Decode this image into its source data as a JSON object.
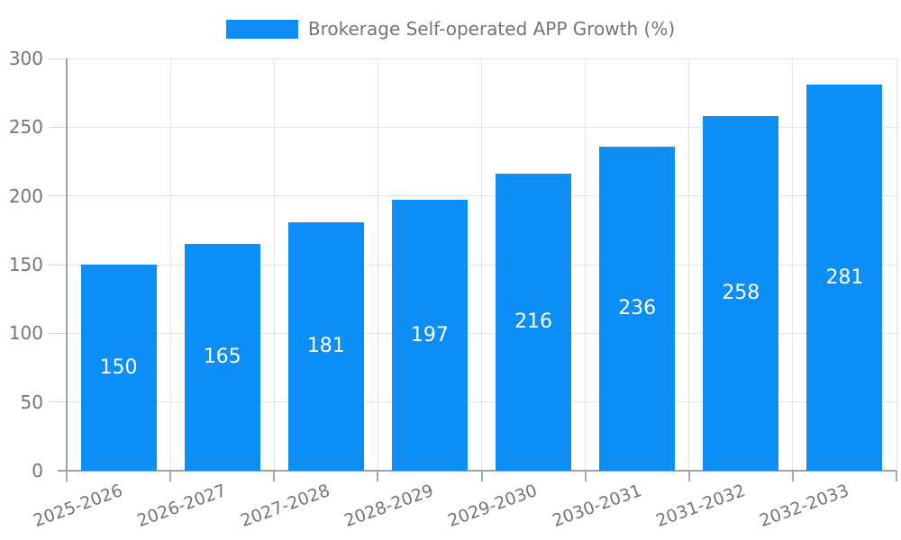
{
  "legend": {
    "label": "Brokerage Self-operated APP Growth (%)"
  },
  "colors": {
    "bar": "#0d8ef7",
    "axis_line": "#a3a3a3",
    "grid_line": "#e4e4e4",
    "tick_text": "#757575",
    "legend_text": "#747474",
    "value_label_text": "#ffffff",
    "background": "#ffffff"
  },
  "chart_data": {
    "type": "bar",
    "title": "Brokerage Self-operated APP Growth (%)",
    "series_name": "Brokerage Self-operated APP Growth (%)",
    "categories": [
      "2025-2026",
      "2026-2027",
      "2027-2028",
      "2028-2029",
      "2029-2030",
      "2030-2031",
      "2031-2032",
      "2032-2033"
    ],
    "values": [
      150,
      165,
      181,
      197,
      216,
      236,
      258,
      281
    ],
    "xlabel": "",
    "ylabel": "",
    "ylim": [
      0,
      300
    ],
    "yticks": [
      0,
      50,
      100,
      150,
      200,
      250,
      300
    ],
    "grid": true,
    "legend_position": "top-center",
    "value_labels": "inside-center",
    "x_label_rotation_deg": -20
  }
}
